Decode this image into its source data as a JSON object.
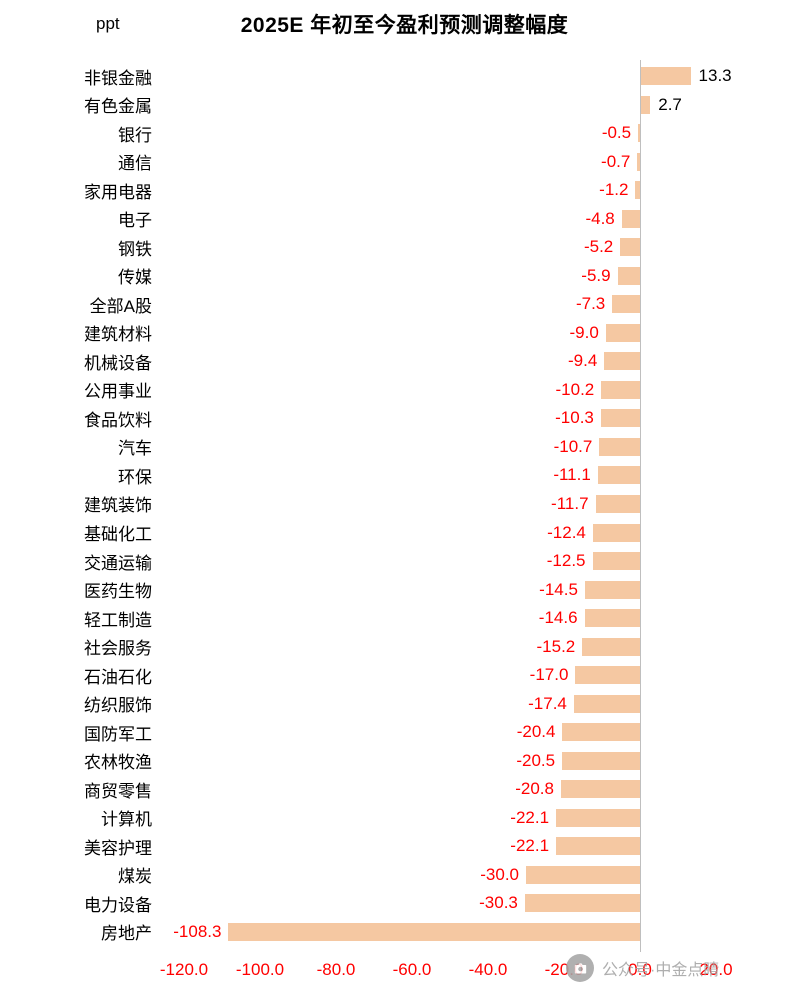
{
  "header": {
    "unit": "ppt",
    "title": "2025E 年初至今盈利预测调整幅度"
  },
  "chart_data": {
    "type": "bar",
    "orientation": "horizontal",
    "title": "2025E 年初至今盈利预测调整幅度",
    "unit": "ppt",
    "xlabel": "",
    "ylabel": "",
    "categories": [
      "非银金融",
      "有色金属",
      "银行",
      "通信",
      "家用电器",
      "电子",
      "钢铁",
      "传媒",
      "全部A股",
      "建筑材料",
      "机械设备",
      "公用事业",
      "食品饮料",
      "汽车",
      "环保",
      "建筑装饰",
      "基础化工",
      "交通运输",
      "医药生物",
      "轻工制造",
      "社会服务",
      "石油石化",
      "纺织服饰",
      "国防军工",
      "农林牧渔",
      "商贸零售",
      "计算机",
      "美容护理",
      "煤炭",
      "电力设备",
      "房地产"
    ],
    "values": [
      13.3,
      2.7,
      -0.5,
      -0.7,
      -1.2,
      -4.8,
      -5.2,
      -5.9,
      -7.3,
      -9.0,
      -9.4,
      -10.2,
      -10.3,
      -10.7,
      -11.1,
      -11.7,
      -12.4,
      -12.5,
      -14.5,
      -14.6,
      -15.2,
      -17.0,
      -17.4,
      -20.4,
      -20.5,
      -20.8,
      -22.1,
      -22.1,
      -30.0,
      -30.3,
      -108.3
    ],
    "xlim": [
      -125,
      25
    ],
    "xticks": [
      -120,
      -100,
      -80,
      -60,
      -40,
      -20,
      0,
      20
    ],
    "grid": false,
    "legend": "none",
    "bar_color": "#f5c8a2",
    "negative_value_color": "#ff0000",
    "positive_value_color": "#000000",
    "tick_color": "#ff0000",
    "axis_line_color": "#bfbfbf"
  },
  "watermark": {
    "text": "公众号·中金点睛",
    "icon": "camera-icon"
  }
}
